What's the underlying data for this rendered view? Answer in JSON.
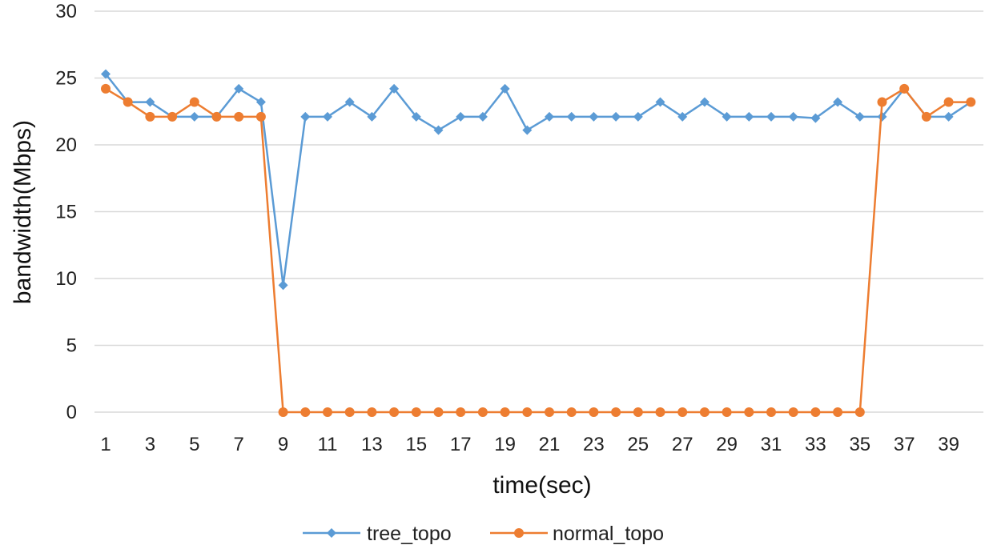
{
  "chart_data": {
    "type": "line",
    "title": "",
    "xlabel": "time(sec)",
    "ylabel": "bandwidth(Mbps)",
    "ylim": [
      0,
      30
    ],
    "yticks": [
      0,
      5,
      10,
      15,
      20,
      25,
      30
    ],
    "x": [
      1,
      2,
      3,
      4,
      5,
      6,
      7,
      8,
      9,
      10,
      11,
      12,
      13,
      14,
      15,
      16,
      17,
      18,
      19,
      20,
      21,
      22,
      23,
      24,
      25,
      26,
      27,
      28,
      29,
      30,
      31,
      32,
      33,
      34,
      35,
      36,
      37,
      38,
      39,
      40
    ],
    "xtick_labels": [
      1,
      3,
      5,
      7,
      9,
      11,
      13,
      15,
      17,
      19,
      21,
      23,
      25,
      27,
      29,
      31,
      33,
      35,
      37,
      39
    ],
    "grid": true,
    "legend_position": "bottom",
    "series": [
      {
        "name": "tree_topo",
        "color": "#5b9bd5",
        "marker": "diamond",
        "values": [
          25.3,
          23.2,
          23.2,
          22.1,
          22.1,
          22.1,
          24.2,
          23.2,
          9.5,
          22.1,
          22.1,
          23.2,
          22.1,
          24.2,
          22.1,
          21.1,
          22.1,
          22.1,
          24.2,
          21.1,
          22.1,
          22.1,
          22.1,
          22.1,
          22.1,
          23.2,
          22.1,
          23.2,
          22.1,
          22.1,
          22.1,
          22.1,
          22.0,
          23.2,
          22.1,
          22.1,
          24.2,
          22.1,
          22.1,
          23.2
        ]
      },
      {
        "name": "normal_topo",
        "color": "#ed7d31",
        "marker": "circle",
        "values": [
          24.2,
          23.2,
          22.1,
          22.1,
          23.2,
          22.1,
          22.1,
          22.1,
          0,
          0,
          0,
          0,
          0,
          0,
          0,
          0,
          0,
          0,
          0,
          0,
          0,
          0,
          0,
          0,
          0,
          0,
          0,
          0,
          0,
          0,
          0,
          0,
          0,
          0,
          0,
          23.2,
          24.2,
          22.1,
          23.2,
          23.2
        ]
      }
    ]
  }
}
